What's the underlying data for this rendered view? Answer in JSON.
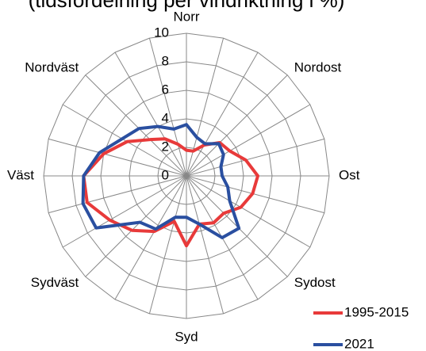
{
  "chart_data": {
    "type": "radar",
    "title": "(tidsfördelning per vindriktning i %)",
    "categories": [
      "Norr",
      null,
      null,
      "Nordost",
      null,
      null,
      "Ost",
      null,
      null,
      "Sydost",
      null,
      null,
      "Syd",
      null,
      null,
      "Sydväst",
      null,
      null,
      "Väst",
      null,
      null,
      "Nordväst",
      null,
      null
    ],
    "ylim": [
      0,
      10
    ],
    "yticks": [
      0,
      2,
      4,
      6,
      8,
      10
    ],
    "grid": true,
    "series": [
      {
        "name": "1995-2015",
        "color": "#e83a3a",
        "values": [
          1.8,
          1.8,
          2.5,
          3.3,
          3.5,
          4.3,
          5.0,
          4.8,
          4.4,
          3.7,
          3.8,
          3.5,
          4.9,
          3.3,
          4.5,
          5.4,
          6.2,
          7.2,
          7.2,
          6.0,
          4.8,
          3.6,
          3.0,
          2.3
        ]
      },
      {
        "name": "2021",
        "color": "#2a4fa0",
        "values": [
          3.6,
          2.8,
          2.6,
          3.2,
          3.0,
          2.5,
          2.5,
          3.0,
          3.5,
          5.2,
          5.0,
          3.5,
          2.9,
          3.0,
          4.3,
          4.6,
          7.3,
          7.5,
          7.2,
          6.3,
          5.2,
          4.7,
          4.0,
          3.4
        ]
      }
    ]
  }
}
